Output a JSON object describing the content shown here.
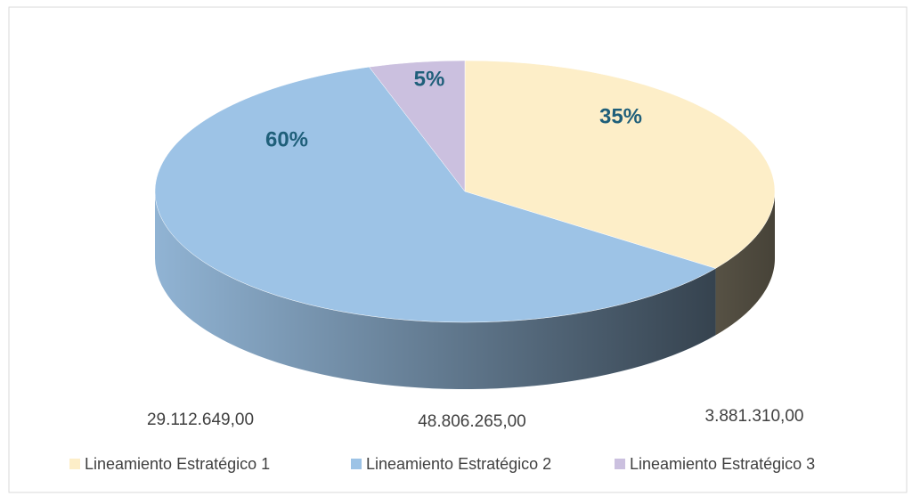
{
  "chart_data": {
    "type": "pie3d",
    "categories": [
      "Lineamiento Estratégico 1",
      "Lineamiento Estratégico 2",
      "Lineamiento Estratégico 3"
    ],
    "values": [
      35,
      60,
      5
    ],
    "value_labels": [
      "35%",
      "60%",
      "5%"
    ],
    "colors": [
      "#fdeec8",
      "#9dc3e6",
      "#cbc0df"
    ],
    "annotations": [
      "29.112.649,00",
      "48.806.265,00",
      "3.881.310,00"
    ],
    "legend": "bottom"
  }
}
